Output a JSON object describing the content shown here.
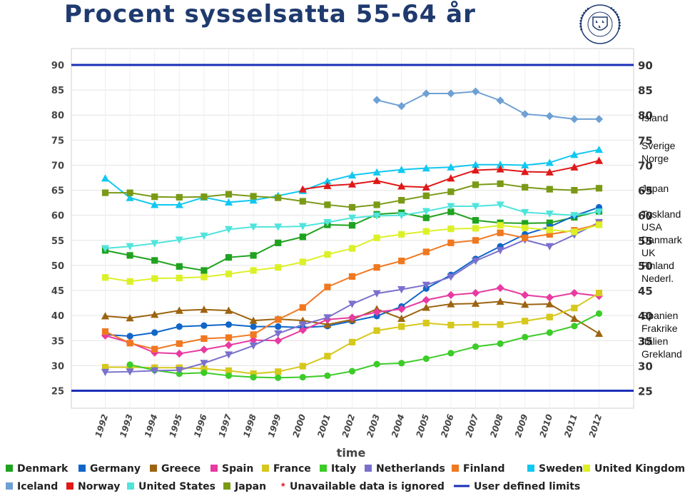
{
  "slide": {
    "title": "Procent sysselsatta 55-64 år"
  },
  "logo": {
    "text": "UNIVERSITET STOCKHOLMS"
  },
  "side_labels": [
    {
      "id": "island",
      "lines": [
        "Island"
      ]
    },
    {
      "id": "sverige-norge",
      "lines": [
        "Sverige",
        "Norge"
      ]
    },
    {
      "id": "japan",
      "lines": [
        "Japan"
      ]
    },
    {
      "id": "group",
      "lines": [
        "Tyskland",
        "USA",
        "Danmark",
        "UK",
        "Finland",
        "Nederl."
      ]
    },
    {
      "id": "south",
      "lines": [
        "Spanien",
        "Frakrike",
        "Italien",
        "Grekland"
      ]
    }
  ],
  "chart_data": {
    "type": "line",
    "xlabel": "time",
    "ylabel": "",
    "ylim": [
      25,
      90
    ],
    "yticks": [
      25,
      30,
      35,
      40,
      45,
      50,
      55,
      60,
      65,
      70,
      75,
      80,
      85,
      90
    ],
    "x": [
      "1992",
      "1993",
      "1994",
      "1995",
      "1996",
      "1997",
      "1998",
      "1999",
      "2000",
      "2001",
      "2002",
      "2003",
      "2004",
      "2005",
      "2006",
      "2007",
      "2008",
      "2009",
      "2010",
      "2011",
      "2012"
    ],
    "limits": [
      90,
      25
    ],
    "limit_color": "#1a2fb8",
    "grid": true,
    "legend_position": "bottom",
    "series": [
      {
        "name": "Denmark",
        "color": "#1fa21f",
        "marker": "square",
        "values": [
          53,
          52,
          51,
          49.8,
          49,
          51.6,
          52,
          54.5,
          55.7,
          58.1,
          58,
          60.2,
          60.5,
          59.5,
          60.7,
          59,
          58.5,
          58.4,
          58.5,
          59.6,
          60.8
        ]
      },
      {
        "name": "Germany",
        "color": "#1066c8",
        "marker": "circle",
        "values": [
          36.2,
          35.9,
          36.6,
          37.8,
          38,
          38.2,
          37.8,
          37.8,
          37.6,
          37.9,
          38.9,
          39.9,
          41.8,
          45.4,
          48.1,
          51.3,
          53.8,
          56.2,
          57.7,
          59.9,
          61.6
        ]
      },
      {
        "name": "Greece",
        "color": "#9c6410",
        "marker": "triangle",
        "values": [
          39.9,
          39.5,
          40.2,
          41,
          41.2,
          41,
          39,
          39.3,
          39,
          38.2,
          39.2,
          41.3,
          39.4,
          41.6,
          42.3,
          42.4,
          42.8,
          42.2,
          42.3,
          39.4,
          36.4
        ]
      },
      {
        "name": "Spain",
        "color": "#e83aa0",
        "marker": "diamond",
        "values": [
          36,
          34.6,
          32.6,
          32.4,
          33.2,
          34.1,
          35.1,
          35,
          37.1,
          39.2,
          39.6,
          40.7,
          41.3,
          43.1,
          44.1,
          44.5,
          45.5,
          44.1,
          43.6,
          44.5,
          43.9
        ]
      },
      {
        "name": "France",
        "color": "#d6c81c",
        "marker": "square",
        "values": [
          29.7,
          29.7,
          29.6,
          29.6,
          29.4,
          29,
          28.4,
          28.8,
          29.9,
          31.9,
          34.7,
          37,
          37.8,
          38.5,
          38.1,
          38.2,
          38.2,
          38.9,
          39.7,
          41.5,
          44.5
        ]
      },
      {
        "name": "Italy",
        "color": "#3ccc28",
        "marker": "circle",
        "values": [
          null,
          30.2,
          29.1,
          28.4,
          28.6,
          28,
          27.7,
          27.6,
          27.7,
          28,
          28.9,
          30.3,
          30.5,
          31.4,
          32.5,
          33.8,
          34.4,
          35.7,
          36.6,
          37.9,
          40.4
        ]
      },
      {
        "name": "Netherlands",
        "color": "#7a70cc",
        "marker": "triangle-down",
        "values": [
          28.7,
          28.8,
          29,
          29.1,
          30.5,
          32.2,
          34,
          36.4,
          38.2,
          39.6,
          42.3,
          44.4,
          45.2,
          46.1,
          47.7,
          50.9,
          53,
          55.1,
          53.8,
          56.1,
          58.6
        ]
      },
      {
        "name": "Finland",
        "color": "#f07820",
        "marker": "square",
        "values": [
          36.8,
          34.5,
          33.3,
          34.4,
          35.4,
          35.6,
          36.2,
          39.2,
          41.6,
          45.7,
          47.8,
          49.6,
          50.9,
          52.7,
          54.5,
          55,
          56.5,
          55.5,
          56.2,
          57,
          58.2
        ]
      },
      {
        "name": "Sweden",
        "color": "#10c8f0",
        "marker": "triangle",
        "values": [
          67.4,
          63.5,
          62.1,
          62.1,
          63.6,
          62.6,
          63,
          63.9,
          64.9,
          66.8,
          68,
          68.6,
          69.1,
          69.4,
          69.6,
          70.1,
          70.1,
          70,
          70.5,
          72.1,
          73.1
        ]
      },
      {
        "name": "United Kingdom",
        "color": "#dcf028",
        "marker": "square",
        "values": [
          47.6,
          46.8,
          47.4,
          47.5,
          47.7,
          48.3,
          49,
          49.6,
          50.7,
          52.2,
          53.4,
          55.5,
          56.2,
          56.8,
          57.3,
          57.4,
          58,
          57.5,
          57.1,
          56.7,
          58.1
        ]
      },
      {
        "name": "Iceland",
        "color": "#6ea0d4",
        "marker": "diamond",
        "values": [
          null,
          null,
          null,
          null,
          null,
          null,
          null,
          null,
          null,
          null,
          null,
          83,
          81.8,
          84.3,
          84.3,
          84.7,
          82.9,
          80.2,
          79.8,
          79.2,
          79.2
        ]
      },
      {
        "name": "Norway",
        "color": "#e01818",
        "marker": "triangle",
        "values": [
          null,
          null,
          null,
          null,
          null,
          null,
          null,
          null,
          65.2,
          65.9,
          66.2,
          66.9,
          65.8,
          65.6,
          67.4,
          69,
          69.2,
          68.7,
          68.6,
          69.6,
          70.9
        ]
      },
      {
        "name": "United States",
        "color": "#50e4dc",
        "marker": "triangle-down",
        "values": [
          53.4,
          53.8,
          54.4,
          55.1,
          55.9,
          57.2,
          57.7,
          57.7,
          57.8,
          58.6,
          59.5,
          59.9,
          60,
          60.8,
          61.8,
          61.8,
          62.1,
          60.6,
          60.3,
          60,
          60.7
        ]
      },
      {
        "name": "Japan",
        "color": "#7a9a16",
        "marker": "square",
        "values": [
          64.5,
          64.5,
          63.7,
          63.6,
          63.7,
          64.2,
          63.8,
          63.5,
          62.8,
          62.1,
          61.6,
          62.1,
          63,
          63.9,
          64.7,
          66.1,
          66.3,
          65.6,
          65.2,
          65,
          65.4
        ]
      }
    ],
    "legend_extra": [
      {
        "label": "Unavailable data is ignored",
        "color": "#e01818",
        "symbol": "*"
      },
      {
        "label": "User defined limits",
        "color": "#1a2fb8",
        "symbol": "line"
      }
    ]
  }
}
